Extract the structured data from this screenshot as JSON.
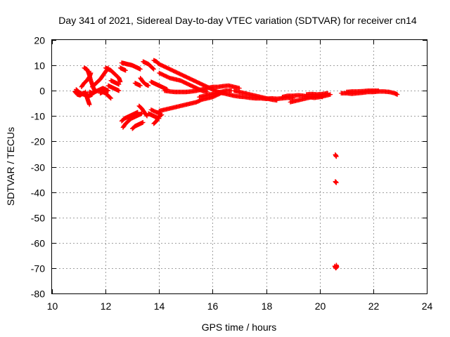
{
  "chart_data": {
    "type": "scatter",
    "title": "Day 341 of 2021, Sidereal Day-to-day VTEC variation (SDTVAR) for receiver cn14",
    "xlabel": "GPS time / hours",
    "ylabel": "SDTVAR / TECUs",
    "xlim": [
      10,
      24
    ],
    "ylim": [
      -80,
      20
    ],
    "xticks": [
      10,
      12,
      14,
      16,
      18,
      20,
      22,
      24
    ],
    "yticks": [
      -80,
      -70,
      -60,
      -50,
      -40,
      -30,
      -20,
      -10,
      0,
      10,
      20
    ],
    "grid": true,
    "marker": "+",
    "color": "#ff0000",
    "series": [
      {
        "name": "SDTVAR",
        "segments": [
          [
            [
              10.9,
              0.5
            ],
            [
              11.0,
              -0.5
            ],
            [
              11.1,
              -1.2
            ],
            [
              11.2,
              -1.5
            ],
            [
              11.3,
              -1.8
            ],
            [
              11.4,
              -2.0
            ],
            [
              11.5,
              -1.5
            ]
          ],
          [
            [
              10.85,
              -0.3
            ],
            [
              10.95,
              -1.5
            ],
            [
              11.05,
              -1.8
            ],
            [
              11.15,
              -1.0
            ],
            [
              11.25,
              -0.8
            ]
          ],
          [
            [
              11.1,
              1.5
            ],
            [
              11.2,
              3.0
            ],
            [
              11.3,
              4.0
            ],
            [
              11.4,
              5.5
            ],
            [
              11.45,
              7.0
            ]
          ],
          [
            [
              11.25,
              -0.5
            ],
            [
              11.3,
              -2.5
            ],
            [
              11.35,
              -4.0
            ],
            [
              11.4,
              -5.5
            ]
          ],
          [
            [
              11.2,
              9.0
            ],
            [
              11.3,
              8.5
            ],
            [
              11.35,
              7.5
            ],
            [
              11.4,
              6.0
            ],
            [
              11.45,
              4.0
            ],
            [
              11.5,
              2.5
            ],
            [
              11.55,
              1.0
            ],
            [
              11.6,
              0.0
            ]
          ],
          [
            [
              11.4,
              -0.5
            ],
            [
              11.5,
              -1.0
            ],
            [
              11.6,
              -0.5
            ],
            [
              11.7,
              0.0
            ],
            [
              11.8,
              0.5
            ],
            [
              11.9,
              1.0
            ],
            [
              12.0,
              0.5
            ],
            [
              12.1,
              0.0
            ]
          ],
          [
            [
              11.5,
              1.5
            ],
            [
              11.6,
              2.5
            ],
            [
              11.7,
              3.5
            ],
            [
              11.8,
              4.5
            ],
            [
              11.9,
              6.0
            ],
            [
              12.0,
              7.5
            ],
            [
              12.1,
              9.0
            ]
          ],
          [
            [
              11.8,
              -1.0
            ],
            [
              11.9,
              -0.5
            ],
            [
              12.0,
              -1.0
            ],
            [
              12.1,
              -2.0
            ],
            [
              12.2,
              -3.0
            ]
          ],
          [
            [
              12.0,
              9.0
            ],
            [
              12.1,
              8.5
            ],
            [
              12.2,
              8.0
            ],
            [
              12.3,
              7.0
            ],
            [
              12.4,
              6.0
            ],
            [
              12.5,
              5.0
            ],
            [
              12.55,
              3.5
            ]
          ],
          [
            [
              12.1,
              2.0
            ],
            [
              12.2,
              1.5
            ],
            [
              12.3,
              1.0
            ],
            [
              12.4,
              0.5
            ],
            [
              12.5,
              0.0
            ]
          ],
          [
            [
              12.2,
              4.0
            ],
            [
              12.3,
              3.5
            ],
            [
              12.4,
              3.0
            ],
            [
              12.5,
              2.5
            ]
          ],
          [
            [
              12.6,
              11.0
            ],
            [
              12.7,
              10.8
            ],
            [
              12.8,
              10.5
            ],
            [
              12.9,
              10.3
            ],
            [
              13.0,
              10.0
            ],
            [
              13.1,
              9.5
            ],
            [
              13.2,
              9.0
            ],
            [
              13.3,
              8.5
            ]
          ],
          [
            [
              12.65,
              -14.5
            ],
            [
              12.75,
              -13.0
            ],
            [
              12.85,
              -12.0
            ],
            [
              12.95,
              -11.0
            ],
            [
              13.05,
              -10.5
            ],
            [
              13.15,
              -10.0
            ],
            [
              13.25,
              -9.5
            ],
            [
              13.35,
              -9.0
            ]
          ],
          [
            [
              12.6,
              -12.0
            ],
            [
              12.7,
              -11.0
            ],
            [
              12.8,
              -10.5
            ],
            [
              12.9,
              -10.0
            ],
            [
              13.0,
              -9.5
            ],
            [
              13.1,
              -9.0
            ],
            [
              13.2,
              -8.5
            ]
          ],
          [
            [
              12.55,
              9.0
            ],
            [
              12.65,
              8.5
            ],
            [
              12.75,
              8.0
            ]
          ],
          [
            [
              13.0,
              -15.0
            ],
            [
              13.1,
              -14.0
            ],
            [
              13.2,
              -13.5
            ],
            [
              13.3,
              -13.0
            ],
            [
              13.4,
              -12.5
            ]
          ],
          [
            [
              13.4,
              11.5
            ],
            [
              13.5,
              11.0
            ],
            [
              13.6,
              10.5
            ],
            [
              13.7,
              9.5
            ],
            [
              13.8,
              8.5
            ]
          ],
          [
            [
              13.3,
              5.0
            ],
            [
              13.4,
              3.5
            ],
            [
              13.5,
              2.5
            ],
            [
              13.6,
              2.0
            ]
          ],
          [
            [
              13.25,
              -6.0
            ],
            [
              13.35,
              -7.0
            ],
            [
              13.45,
              -8.5
            ],
            [
              13.55,
              -10.0
            ]
          ],
          [
            [
              13.1,
              3.0
            ],
            [
              13.2,
              2.5
            ],
            [
              13.3,
              2.0
            ]
          ],
          [
            [
              13.7,
              3.5
            ],
            [
              13.8,
              3.0
            ],
            [
              13.9,
              2.5
            ],
            [
              14.0,
              2.0
            ],
            [
              14.1,
              1.5
            ],
            [
              14.2,
              1.0
            ],
            [
              14.3,
              0.5
            ]
          ],
          [
            [
              13.6,
              -9.0
            ],
            [
              13.7,
              -9.5
            ],
            [
              13.8,
              -10.0
            ],
            [
              13.9,
              -10.5
            ],
            [
              14.0,
              -11.0
            ]
          ],
          [
            [
              13.8,
              -13.0
            ],
            [
              13.9,
              -12.0
            ],
            [
              14.0,
              -10.0
            ],
            [
              14.1,
              -9.5
            ]
          ],
          [
            [
              13.7,
              -7.5
            ],
            [
              13.9,
              -8.5
            ],
            [
              14.05,
              -9.0
            ]
          ],
          [
            [
              13.8,
              12.0
            ],
            [
              13.9,
              11.5
            ],
            [
              14.0,
              10.5
            ],
            [
              14.2,
              9.5
            ],
            [
              14.4,
              8.5
            ],
            [
              14.6,
              7.5
            ],
            [
              14.8,
              6.5
            ],
            [
              15.0,
              5.5
            ],
            [
              15.2,
              4.5
            ],
            [
              15.4,
              3.5
            ],
            [
              15.6,
              2.5
            ],
            [
              15.8,
              1.5
            ],
            [
              16.0,
              0.5
            ],
            [
              16.2,
              -0.5
            ],
            [
              16.4,
              -1.0
            ]
          ],
          [
            [
              14.0,
              7.0
            ],
            [
              14.2,
              6.0
            ],
            [
              14.4,
              5.0
            ],
            [
              14.6,
              4.5
            ],
            [
              14.8,
              4.0
            ],
            [
              15.0,
              3.0
            ],
            [
              15.2,
              2.0
            ],
            [
              15.4,
              1.0
            ],
            [
              15.6,
              0.0
            ],
            [
              15.8,
              -0.5
            ]
          ],
          [
            [
              14.0,
              -8.0
            ],
            [
              14.2,
              -7.5
            ],
            [
              14.4,
              -7.0
            ],
            [
              14.6,
              -6.5
            ],
            [
              14.8,
              -6.0
            ],
            [
              15.0,
              -5.5
            ],
            [
              15.2,
              -5.0
            ],
            [
              15.4,
              -4.5
            ],
            [
              15.6,
              -3.5
            ],
            [
              15.8,
              -3.0
            ],
            [
              16.0,
              -2.5
            ],
            [
              16.2,
              -1.5
            ],
            [
              16.4,
              -0.5
            ]
          ],
          [
            [
              14.2,
              0.0
            ],
            [
              14.4,
              -0.3
            ],
            [
              14.6,
              -0.5
            ],
            [
              14.8,
              -0.5
            ],
            [
              15.0,
              -0.5
            ],
            [
              15.2,
              -0.3
            ],
            [
              15.4,
              0.0
            ],
            [
              15.6,
              0.5
            ],
            [
              15.8,
              1.0
            ],
            [
              16.0,
              1.5
            ],
            [
              16.2,
              1.5
            ],
            [
              16.4,
              1.8
            ],
            [
              16.6,
              2.0
            ],
            [
              16.8,
              1.5
            ],
            [
              17.0,
              1.0
            ]
          ],
          [
            [
              15.5,
              -2.5
            ],
            [
              15.7,
              -2.0
            ],
            [
              15.9,
              -1.5
            ],
            [
              16.1,
              -1.0
            ],
            [
              16.3,
              -0.5
            ],
            [
              16.5,
              0.0
            ],
            [
              16.7,
              0.0
            ]
          ],
          [
            [
              16.2,
              -0.5
            ],
            [
              16.4,
              -1.0
            ],
            [
              16.6,
              -1.5
            ],
            [
              16.8,
              -2.0
            ],
            [
              17.0,
              -2.3
            ],
            [
              17.2,
              -2.5
            ],
            [
              17.4,
              -2.8
            ],
            [
              17.6,
              -3.0
            ],
            [
              17.8,
              -3.0
            ],
            [
              18.0,
              -3.2
            ],
            [
              18.2,
              -3.0
            ],
            [
              18.4,
              -3.2
            ],
            [
              18.6,
              -3.0
            ],
            [
              18.8,
              -2.8
            ],
            [
              19.0,
              -3.0
            ]
          ],
          [
            [
              16.8,
              0.0
            ],
            [
              17.0,
              -0.5
            ],
            [
              17.2,
              -1.0
            ],
            [
              17.4,
              -1.5
            ],
            [
              17.6,
              -2.0
            ],
            [
              17.8,
              -2.5
            ],
            [
              18.0,
              -3.0
            ],
            [
              18.2,
              -3.5
            ],
            [
              18.4,
              -3.8
            ]
          ],
          [
            [
              18.6,
              -2.5
            ],
            [
              18.8,
              -2.0
            ],
            [
              19.0,
              -2.0
            ],
            [
              19.2,
              -1.8
            ],
            [
              19.4,
              -2.0
            ],
            [
              19.6,
              -2.5
            ],
            [
              19.8,
              -2.8
            ],
            [
              20.0,
              -2.5
            ],
            [
              20.2,
              -2.0
            ],
            [
              20.4,
              -1.5
            ]
          ],
          [
            [
              18.9,
              -4.5
            ],
            [
              19.1,
              -4.0
            ],
            [
              19.3,
              -3.5
            ],
            [
              19.5,
              -3.0
            ],
            [
              19.7,
              -2.5
            ],
            [
              19.9,
              -2.0
            ],
            [
              20.1,
              -2.5
            ]
          ],
          [
            [
              19.5,
              -1.5
            ],
            [
              19.7,
              -1.3
            ],
            [
              19.9,
              -1.5
            ],
            [
              20.1,
              -1.3
            ],
            [
              20.3,
              -1.0
            ]
          ],
          [
            [
              20.6,
              -25.5
            ],
            [
              20.62,
              -26.0
            ],
            [
              20.58,
              -25.2
            ]
          ],
          [
            [
              20.58,
              -35.8
            ],
            [
              20.62,
              -36.3
            ],
            [
              20.6,
              -36.0
            ]
          ],
          [
            [
              20.56,
              -69.2
            ],
            [
              20.6,
              -70.0
            ],
            [
              20.64,
              -69.5
            ],
            [
              20.62,
              -68.8
            ]
          ],
          [
            [
              20.8,
              -1.0
            ],
            [
              21.0,
              -1.0
            ],
            [
              21.2,
              -1.2
            ],
            [
              21.4,
              -1.0
            ],
            [
              21.6,
              -0.8
            ],
            [
              21.8,
              -0.5
            ],
            [
              22.0,
              -0.5
            ],
            [
              22.2,
              -0.3
            ],
            [
              22.4,
              -0.3
            ],
            [
              22.6,
              -0.5
            ],
            [
              22.8,
              -1.0
            ],
            [
              22.9,
              -1.5
            ]
          ],
          [
            [
              21.0,
              -0.5
            ],
            [
              21.2,
              -0.3
            ],
            [
              21.4,
              -0.3
            ],
            [
              21.6,
              -0.2
            ],
            [
              21.8,
              0.0
            ],
            [
              22.0,
              0.0
            ],
            [
              22.2,
              0.0
            ]
          ]
        ]
      }
    ]
  }
}
